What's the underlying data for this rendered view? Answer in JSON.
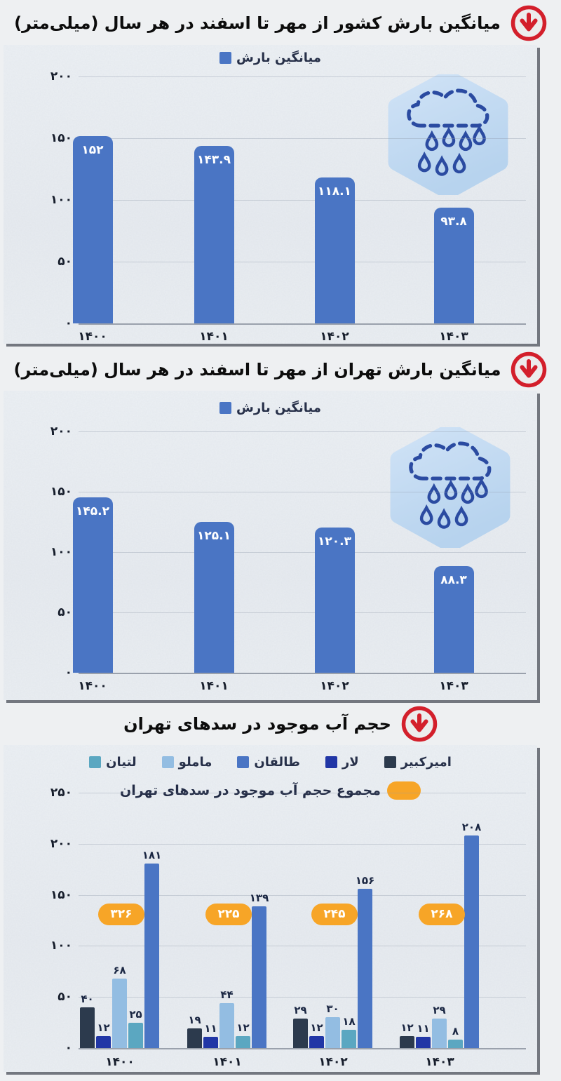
{
  "colors": {
    "bar_blue": "#4a75c4",
    "panel_bg": "#e9edf2",
    "page_bg": "#eef0f2",
    "grid_line": "#a9b1bd",
    "tick_text": "#161d2b",
    "bar_value_text": "#ffffff",
    "group_value_text": "#1b2743",
    "total_badge": "#f7a527",
    "badge_text": "#ffffff",
    "title_text": "#0c0c0c",
    "title_icon_red": "#d31f2b",
    "cloud_stroke": "#2b4ba1",
    "hexagon_fill": "#c7ddf3",
    "series_amirkabir": "#2c3a4d",
    "series_lar": "#2136a6",
    "series_mamloo": "#93bde2",
    "series_latian": "#5ba7c1",
    "series_taleghan": "#4a75c4"
  },
  "icons": {
    "title_marker": "circle-arrow-down-icon",
    "chart_badge": "cloud-rain-icon"
  },
  "chart_data": [
    {
      "type": "bar",
      "title": "میانگین بارش کشور از مهر تا اسفند در هر سال (میلی‌متر)",
      "legend": {
        "label": "میانگین بارش"
      },
      "legend_position": "top",
      "grid": true,
      "categories": [
        "۱۴۰۰",
        "۱۴۰۱",
        "۱۴۰۲",
        "۱۴۰۳"
      ],
      "values": [
        152,
        143.9,
        118.1,
        93.8
      ],
      "value_labels": [
        "۱۵۲",
        "۱۴۳.۹",
        "۱۱۸.۱",
        "۹۳.۸"
      ],
      "ylim": [
        0,
        200
      ],
      "y_ticks": [
        {
          "v": 200,
          "label": "۲۰۰"
        },
        {
          "v": 150,
          "label": "۱۵۰"
        },
        {
          "v": 100,
          "label": "۱۰۰"
        },
        {
          "v": 50,
          "label": "۵۰"
        },
        {
          "v": 0,
          "label": "۰"
        }
      ]
    },
    {
      "type": "bar",
      "title": "میانگین بارش تهران از مهر تا اسفند در هر سال (میلی‌متر)",
      "legend": {
        "label": "میانگین بارش"
      },
      "legend_position": "top",
      "grid": true,
      "categories": [
        "۱۴۰۰",
        "۱۴۰۱",
        "۱۴۰۲",
        "۱۴۰۳"
      ],
      "values": [
        145.2,
        125.1,
        120.3,
        88.3
      ],
      "value_labels": [
        "۱۴۵.۲",
        "۱۲۵.۱",
        "۱۲۰.۳",
        "۸۸.۳"
      ],
      "ylim": [
        0,
        200
      ],
      "y_ticks": [
        {
          "v": 200,
          "label": "۲۰۰"
        },
        {
          "v": 150,
          "label": "۱۵۰"
        },
        {
          "v": 100,
          "label": "۱۰۰"
        },
        {
          "v": 50,
          "label": "۵۰"
        },
        {
          "v": 0,
          "label": "۰"
        }
      ]
    },
    {
      "type": "bar",
      "title": "حجم آب موجود در سدهای تهران",
      "legend_position": "top",
      "grid": true,
      "categories": [
        "۱۴۰۰",
        "۱۴۰۱",
        "۱۴۰۲",
        "۱۴۰۳"
      ],
      "legend_order": [
        "امیرکبیر",
        "لار",
        "طالقان",
        "ماملو",
        "لتیان"
      ],
      "series": [
        {
          "name": "امیرکبیر",
          "color": "#2c3a4d",
          "values": [
            40,
            19,
            29,
            12
          ],
          "value_labels": [
            "۴۰",
            "۱۹",
            "۲۹",
            "۱۲"
          ]
        },
        {
          "name": "لار",
          "color": "#2136a6",
          "values": [
            12,
            11,
            12,
            11
          ],
          "value_labels": [
            "۱۲",
            "۱۱",
            "۱۲",
            "۱۱"
          ]
        },
        {
          "name": "ماملو",
          "color": "#93bde2",
          "values": [
            68,
            44,
            30,
            29
          ],
          "value_labels": [
            "۶۸",
            "۴۴",
            "۳۰",
            "۲۹"
          ]
        },
        {
          "name": "لتیان",
          "color": "#5ba7c1",
          "values": [
            25,
            12,
            18,
            8
          ],
          "value_labels": [
            "۲۵",
            "۱۲",
            "۱۸",
            "۸"
          ]
        },
        {
          "name": "طالقان",
          "color": "#4a75c4",
          "values": [
            181,
            139,
            156,
            208
          ],
          "value_labels": [
            "۱۸۱",
            "۱۳۹",
            "۱۵۶",
            "۲۰۸"
          ]
        }
      ],
      "totals": {
        "label": "مجموع حجم آب موجود در سدهای تهران",
        "values": [
          326,
          225,
          245,
          268
        ],
        "value_labels": [
          "۳۲۶",
          "۲۲۵",
          "۲۴۵",
          "۲۶۸"
        ],
        "badge_color": "#f7a527"
      },
      "ylim": [
        0,
        250
      ],
      "y_ticks": [
        {
          "v": 250,
          "label": "۲۵۰"
        },
        {
          "v": 200,
          "label": "۲۰۰"
        },
        {
          "v": 150,
          "label": "۱۵۰"
        },
        {
          "v": 100,
          "label": "۱۰۰"
        },
        {
          "v": 50,
          "label": "۵۰"
        },
        {
          "v": 0,
          "label": "۰"
        }
      ]
    }
  ]
}
